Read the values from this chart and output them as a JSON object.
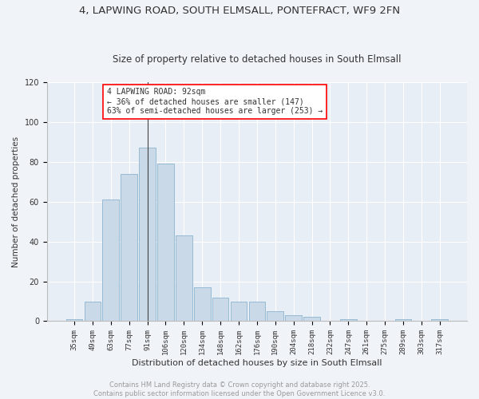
{
  "title1": "4, LAPWING ROAD, SOUTH ELMSALL, PONTEFRACT, WF9 2FN",
  "title2": "Size of property relative to detached houses in South Elmsall",
  "xlabel": "Distribution of detached houses by size in South Elmsall",
  "ylabel": "Number of detached properties",
  "bar_labels": [
    "35sqm",
    "49sqm",
    "63sqm",
    "77sqm",
    "91sqm",
    "106sqm",
    "120sqm",
    "134sqm",
    "148sqm",
    "162sqm",
    "176sqm",
    "190sqm",
    "204sqm",
    "218sqm",
    "232sqm",
    "247sqm",
    "261sqm",
    "275sqm",
    "289sqm",
    "303sqm",
    "317sqm"
  ],
  "bar_values": [
    1,
    10,
    61,
    74,
    87,
    79,
    43,
    17,
    12,
    10,
    10,
    5,
    3,
    2,
    0,
    1,
    0,
    0,
    1,
    0,
    1
  ],
  "bar_color": "#c9d9e8",
  "bar_edge_color": "#7aaac8",
  "vline_x_index": 4,
  "vline_color": "#444444",
  "annotation_text": "4 LAPWING ROAD: 92sqm\n← 36% of detached houses are smaller (147)\n63% of semi-detached houses are larger (253) →",
  "annotation_box_color": "white",
  "annotation_box_edge": "red",
  "ylim": [
    0,
    120
  ],
  "yticks": [
    0,
    20,
    40,
    60,
    80,
    100,
    120
  ],
  "bg_color": "#e8eef5",
  "fig_bg_color": "#f0f4f8",
  "footer_text": "Contains HM Land Registry data © Crown copyright and database right 2025.\nContains public sector information licensed under the Open Government Licence v3.0.",
  "title_fontsize": 9.5,
  "subtitle_fontsize": 8.5,
  "axis_label_fontsize": 7.5,
  "tick_fontsize": 6.5,
  "annotation_fontsize": 7,
  "footer_fontsize": 6
}
